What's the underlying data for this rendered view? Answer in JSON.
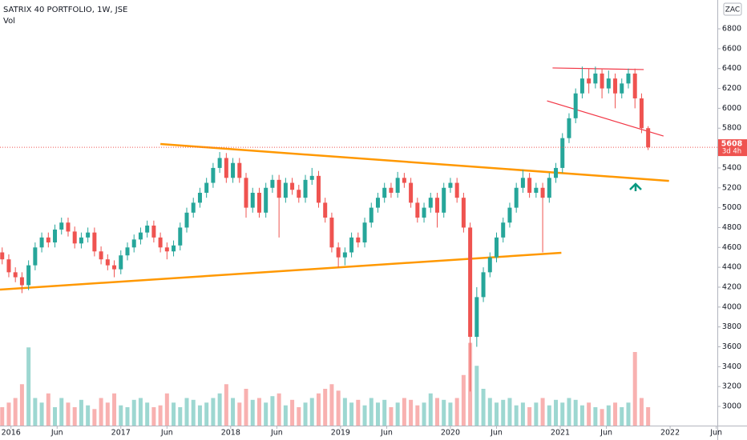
{
  "chart_data": {
    "type": "candlestick",
    "title": "SATRIX 40 PORTFOLIO, 1W, JSE",
    "volume_label": "Vol",
    "currency": "ZAC",
    "countdown": "3d 4h",
    "up_color": "#26a69a",
    "down_color": "#ef5350",
    "xlim": [
      2015.9,
      2022.43
    ],
    "ylim": [
      2807,
      7090
    ],
    "xticks": [
      2016,
      {
        "value": 2016.42,
        "label": "Jun"
      },
      2017,
      {
        "value": 2017.42,
        "label": "Jun"
      },
      2018,
      {
        "value": 2018.42,
        "label": "Jun"
      },
      2019,
      {
        "value": 2019.42,
        "label": "Jun"
      },
      2020,
      {
        "value": 2020.42,
        "label": "Jun"
      },
      2021,
      {
        "value": 2021.42,
        "label": "Jun"
      },
      2022,
      {
        "value": 2022.42,
        "label": "Jun"
      }
    ],
    "yticks": [
      3000,
      3200,
      3400,
      3600,
      3800,
      4000,
      4200,
      4400,
      4600,
      4800,
      5000,
      5200,
      5400,
      5600,
      5800,
      6000,
      6200,
      6400,
      6600,
      6800
    ],
    "x": [
      2015.92,
      2015.98,
      2016.04,
      2016.1,
      2016.16,
      2016.22,
      2016.28,
      2016.34,
      2016.4,
      2016.46,
      2016.52,
      2016.58,
      2016.64,
      2016.7,
      2016.76,
      2016.82,
      2016.88,
      2016.94,
      2017,
      2017.06,
      2017.12,
      2017.18,
      2017.24,
      2017.3,
      2017.36,
      2017.42,
      2017.48,
      2017.54,
      2017.6,
      2017.66,
      2017.72,
      2017.78,
      2017.84,
      2017.9,
      2017.96,
      2018.02,
      2018.08,
      2018.14,
      2018.2,
      2018.26,
      2018.32,
      2018.38,
      2018.44,
      2018.5,
      2018.56,
      2018.62,
      2018.68,
      2018.74,
      2018.8,
      2018.86,
      2018.92,
      2018.98,
      2019.04,
      2019.1,
      2019.16,
      2019.22,
      2019.28,
      2019.34,
      2019.4,
      2019.46,
      2019.52,
      2019.58,
      2019.64,
      2019.7,
      2019.76,
      2019.82,
      2019.88,
      2019.94,
      2020,
      2020.06,
      2020.12,
      2020.18,
      2020.24,
      2020.3,
      2020.36,
      2020.42,
      2020.48,
      2020.54,
      2020.6,
      2020.66,
      2020.72,
      2020.78,
      2020.84,
      2020.9,
      2020.96,
      2021.02,
      2021.08,
      2021.14,
      2021.2,
      2021.26,
      2021.32,
      2021.38,
      2021.44,
      2021.5,
      2021.56,
      2021.62,
      2021.68,
      2021.74,
      2021.8
    ],
    "open": [
      4550,
      4480,
      4350,
      4300,
      4220,
      4420,
      4600,
      4700,
      4650,
      4780,
      4850,
      4760,
      4640,
      4700,
      4750,
      4560,
      4480,
      4420,
      4380,
      4520,
      4600,
      4680,
      4750,
      4820,
      4700,
      4600,
      4560,
      4620,
      4800,
      4950,
      5050,
      5150,
      5250,
      5400,
      5500,
      5300,
      5450,
      5300,
      5000,
      5150,
      4950,
      5200,
      5280,
      5100,
      5250,
      5180,
      5100,
      5280,
      5320,
      5050,
      4900,
      4600,
      4500,
      4550,
      4700,
      4650,
      4850,
      5000,
      5100,
      5200,
      5150,
      5300,
      5250,
      5050,
      4900,
      5000,
      5100,
      4950,
      5200,
      5250,
      5100,
      4800,
      3700,
      4100,
      4350,
      4500,
      4700,
      4850,
      5000,
      5200,
      5300,
      5150,
      5200,
      5100,
      5300,
      5400,
      5700,
      5900,
      6150,
      6300,
      6250,
      6350,
      6200,
      6300,
      6150,
      6250,
      6350,
      6100,
      5800
    ],
    "high": [
      4600,
      4530,
      4400,
      4350,
      4470,
      4650,
      4750,
      4750,
      4830,
      4900,
      4900,
      4810,
      4750,
      4800,
      4800,
      4610,
      4530,
      4470,
      4570,
      4650,
      4730,
      4800,
      4870,
      4870,
      4750,
      4650,
      4670,
      4850,
      5000,
      5100,
      5200,
      5300,
      5450,
      5560,
      5550,
      5500,
      5500,
      5350,
      5200,
      5200,
      5250,
      5330,
      5330,
      5300,
      5300,
      5230,
      5330,
      5400,
      5370,
      5100,
      4950,
      4650,
      4600,
      4750,
      4750,
      4900,
      5050,
      5150,
      5250,
      5250,
      5360,
      5350,
      5300,
      5100,
      5050,
      5150,
      5150,
      5250,
      5300,
      5300,
      5150,
      4850,
      4200,
      4400,
      4550,
      4750,
      4900,
      5050,
      5250,
      5380,
      5350,
      5250,
      5250,
      5350,
      5450,
      5750,
      5950,
      6200,
      6420,
      6400,
      6420,
      6400,
      6380,
      6350,
      6300,
      6400,
      6400,
      6150,
      5820
    ],
    "low": [
      4430,
      4300,
      4250,
      4140,
      4170,
      4370,
      4550,
      4600,
      4600,
      4730,
      4710,
      4590,
      4590,
      4650,
      4510,
      4430,
      4370,
      4300,
      4330,
      4470,
      4550,
      4630,
      4700,
      4650,
      4550,
      4480,
      4510,
      4570,
      4750,
      4900,
      5000,
      5100,
      5200,
      5350,
      5250,
      5250,
      5250,
      4900,
      4950,
      4900,
      4900,
      5150,
      4700,
      5050,
      5130,
      5050,
      5050,
      5230,
      5000,
      4850,
      4550,
      4400,
      4420,
      4500,
      4600,
      4600,
      4800,
      4950,
      5050,
      5100,
      5100,
      5200,
      5000,
      4850,
      4850,
      4950,
      4800,
      4900,
      5150,
      5050,
      4750,
      3150,
      3600,
      4050,
      4300,
      4450,
      4650,
      4800,
      4950,
      5150,
      5100,
      5100,
      4550,
      5050,
      5250,
      5350,
      5650,
      5850,
      6100,
      6150,
      6200,
      6100,
      6150,
      6000,
      6100,
      6200,
      6000,
      5750,
      5580
    ],
    "close": [
      4480,
      4350,
      4300,
      4220,
      4420,
      4600,
      4700,
      4650,
      4780,
      4850,
      4760,
      4640,
      4700,
      4750,
      4560,
      4480,
      4420,
      4380,
      4520,
      4600,
      4680,
      4750,
      4820,
      4700,
      4600,
      4560,
      4620,
      4800,
      4950,
      5050,
      5150,
      5250,
      5400,
      5500,
      5300,
      5450,
      5300,
      5000,
      5150,
      4950,
      5200,
      5280,
      5100,
      5250,
      5180,
      5100,
      5280,
      5320,
      5050,
      4900,
      4600,
      4500,
      4550,
      4700,
      4650,
      4850,
      5000,
      5100,
      5200,
      5150,
      5300,
      5250,
      5050,
      4900,
      5000,
      5100,
      4950,
      5200,
      5250,
      5100,
      4800,
      3700,
      4100,
      4350,
      4500,
      4700,
      4850,
      5000,
      5200,
      5300,
      5150,
      5200,
      5100,
      5300,
      5400,
      5700,
      5900,
      6150,
      6300,
      6250,
      6350,
      6200,
      6300,
      6150,
      6250,
      6350,
      6100,
      5800,
      5608
    ],
    "volume": [
      20,
      25,
      30,
      45,
      85,
      30,
      25,
      35,
      20,
      30,
      25,
      20,
      28,
      22,
      18,
      30,
      25,
      35,
      22,
      20,
      28,
      30,
      25,
      20,
      22,
      35,
      25,
      20,
      30,
      28,
      22,
      25,
      30,
      35,
      45,
      30,
      25,
      40,
      28,
      30,
      25,
      32,
      35,
      22,
      28,
      20,
      25,
      30,
      35,
      40,
      45,
      38,
      30,
      25,
      28,
      22,
      30,
      25,
      28,
      20,
      25,
      30,
      28,
      22,
      25,
      35,
      30,
      28,
      25,
      30,
      55,
      90,
      65,
      40,
      30,
      25,
      28,
      30,
      22,
      25,
      20,
      25,
      30,
      22,
      28,
      25,
      30,
      28,
      22,
      25,
      20,
      18,
      22,
      25,
      20,
      25,
      80,
      30,
      20
    ],
    "trendlines": [
      {
        "color": "#ff9800",
        "x": [
          2017.36,
          2021.99
        ],
        "y": [
          5641,
          5270
        ]
      },
      {
        "color": "#ff9800",
        "x": [
          2015.9,
          2021.01
        ],
        "y": [
          4176,
          4546
        ]
      },
      {
        "color": "#f23645",
        "x": [
          2020.93,
          2021.76
        ],
        "y": [
          6406,
          6390
        ]
      },
      {
        "color": "#f23645",
        "x": [
          2020.88,
          2021.94
        ],
        "y": [
          6075,
          5721
        ]
      }
    ]
  }
}
